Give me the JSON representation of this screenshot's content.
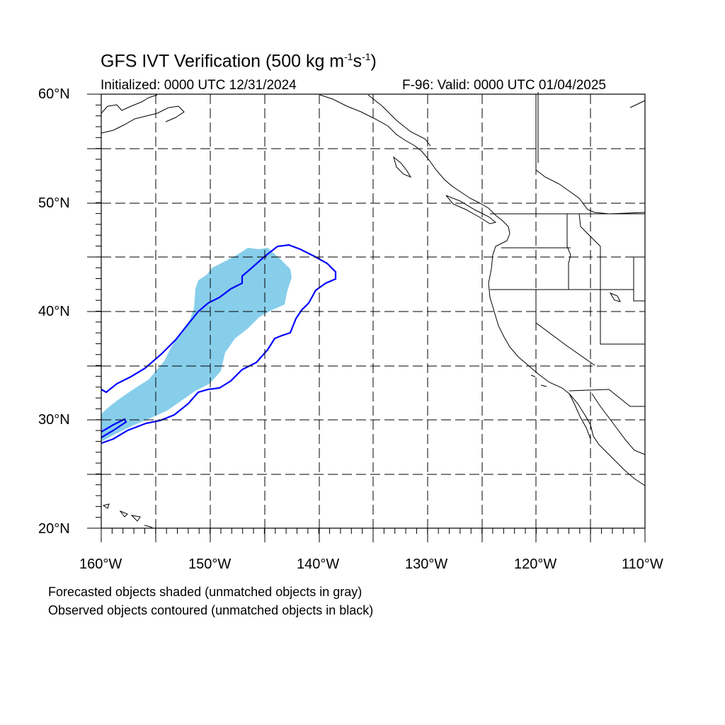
{
  "title": {
    "text": "GFS IVT Verification (500 kg m",
    "sup1": "-1",
    "mid": "s",
    "sup2": "-1",
    "end": ")"
  },
  "initialized": "Initialized: 0000 UTC 12/31/2024",
  "valid": "F-96: Valid: 0000 UTC 01/04/2025",
  "lat_labels": [
    "60°N",
    "50°N",
    "40°N",
    "30°N",
    "20°N"
  ],
  "lon_labels": [
    "160°W",
    "150°W",
    "140°W",
    "130°W",
    "120°W",
    "110°W"
  ],
  "notes": [
    "Forecasted objects shaded (unmatched objects in gray)",
    "Observed objects contoured (unmatched objects in black)"
  ],
  "colors": {
    "forecast_fill": "#87ceeb",
    "observed_contour": "#0000ff",
    "coastline": "#000000",
    "grid": "#000000"
  },
  "map_extent": {
    "lon": [
      -160,
      -110
    ],
    "lat": [
      20,
      60
    ]
  }
}
